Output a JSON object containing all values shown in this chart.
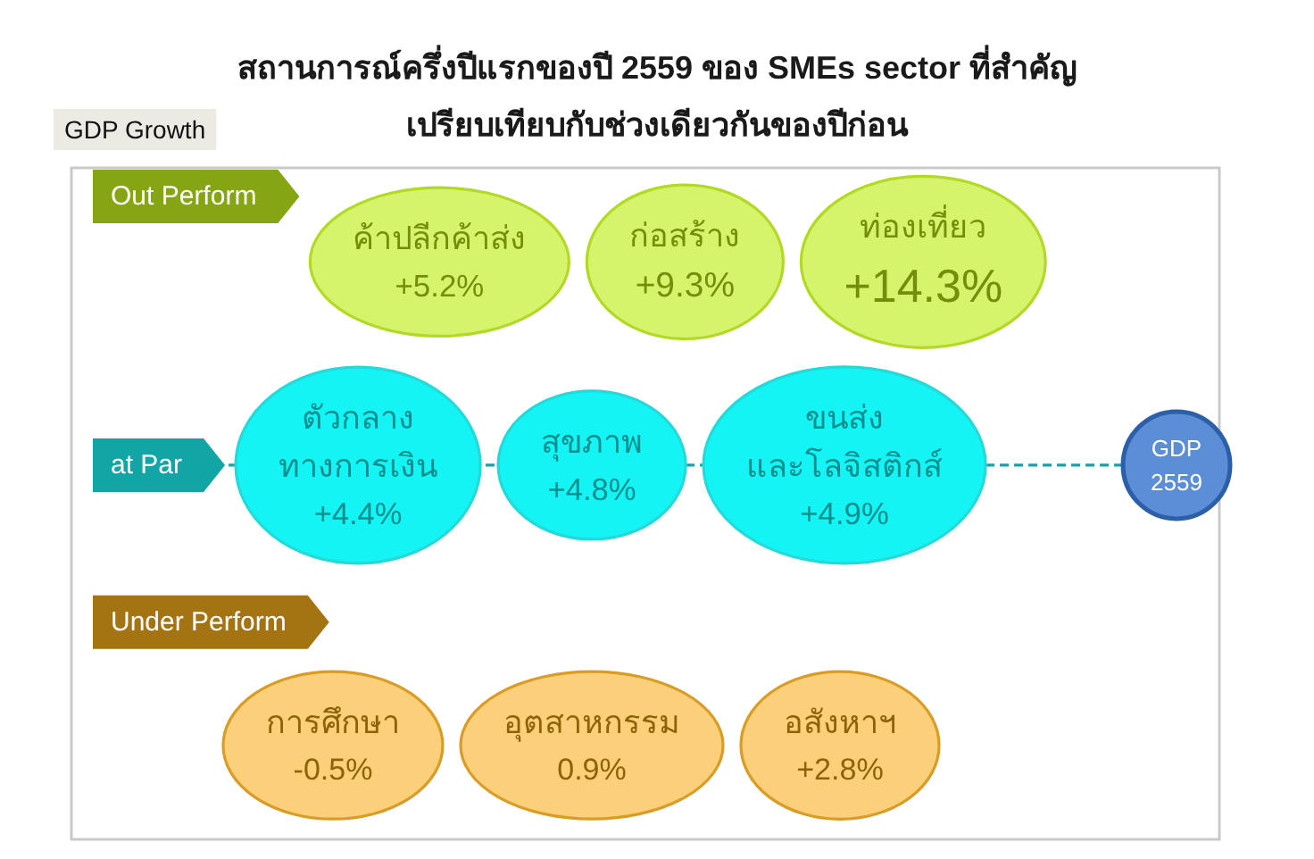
{
  "chart_data": {
    "type": "other",
    "title": "สถานการณ์ครึ่งปีแรกของปี 2559 ของ SMEs sector ที่สำคัญ",
    "subtitle": "เปรียบเทียบกับช่วงเดียวกันของปีก่อน",
    "ylabel": "GDP Growth",
    "categories": [
      "ค้าปลีกค้าส่ง",
      "ก่อสร้าง",
      "ท่องเที่ยว",
      "ตัวกลาง\nทางการเงิน",
      "สุขภาพ",
      "ขนส่ง\nและโลจิสติกส์",
      "การศึกษา",
      "อุตสาหกรรม",
      "อสังหาฯ"
    ],
    "series": [
      {
        "name": "Out Perform",
        "color": "#d6f36c",
        "values": [
          5.2,
          9.3,
          14.3,
          null,
          null,
          null,
          null,
          null,
          null
        ],
        "value_labels": [
          "+5.2%",
          "+9.3%",
          "+14.3%",
          null,
          null,
          null,
          null,
          null,
          null
        ]
      },
      {
        "name": "at Par",
        "color": "#14f4f4",
        "values": [
          null,
          null,
          null,
          4.4,
          4.8,
          4.9,
          null,
          null,
          null
        ],
        "value_labels": [
          null,
          null,
          null,
          "+4.4%",
          "+4.8%",
          "+4.9%",
          null,
          null,
          null
        ]
      },
      {
        "name": "Under Perform",
        "color": "#fcd07a",
        "values": [
          null,
          null,
          null,
          null,
          null,
          null,
          -0.5,
          0.9,
          2.8
        ],
        "value_labels": [
          null,
          null,
          null,
          null,
          null,
          null,
          "-0.5%",
          "0.9%",
          "+2.8%"
        ]
      }
    ],
    "annotations": [
      "GDP\n2559"
    ]
  }
}
